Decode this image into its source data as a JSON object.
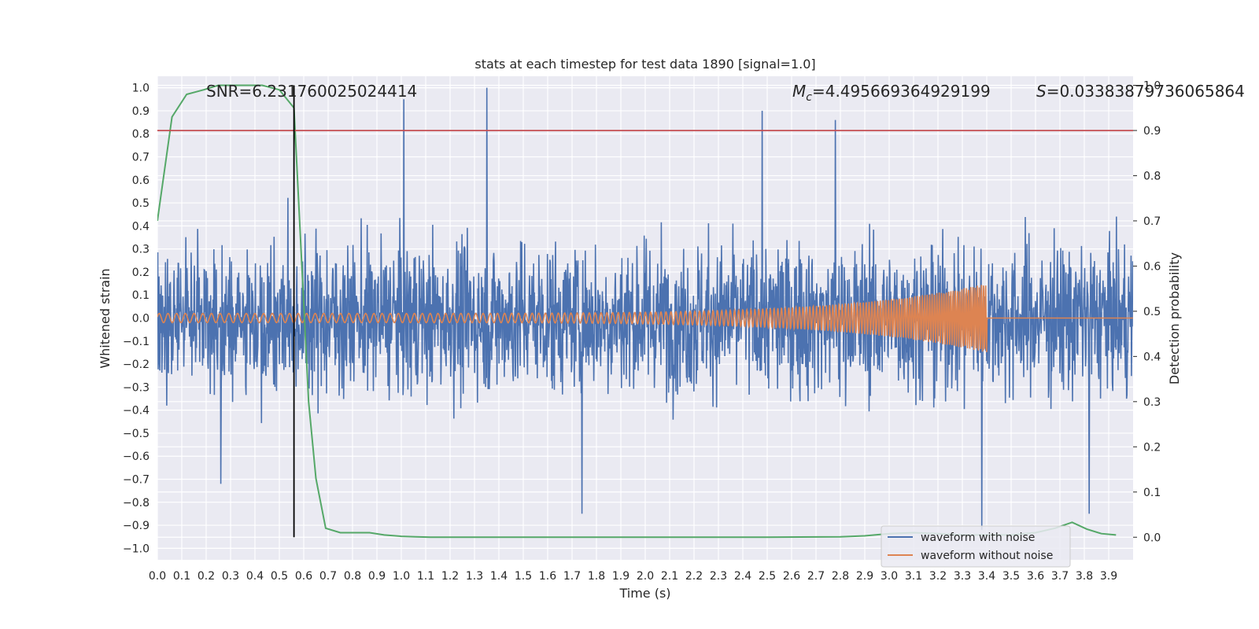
{
  "chart_data": {
    "type": "line",
    "title": "stats at each timestep for test data 1890 [signal=1.0]",
    "xlabel": "Time (s)",
    "ylabel": "Whitened strain",
    "y2label": "Detection probability",
    "xlim": [
      0.0,
      4.0
    ],
    "ylim": [
      -1.05,
      1.05
    ],
    "y2lim": [
      -0.05,
      1.02
    ],
    "x_ticks": [
      "0.0",
      "0.1",
      "0.2",
      "0.3",
      "0.4",
      "0.5",
      "0.6",
      "0.7",
      "0.8",
      "0.9",
      "1.0",
      "1.1",
      "1.2",
      "1.3",
      "1.4",
      "1.5",
      "1.6",
      "1.7",
      "1.8",
      "1.9",
      "2.0",
      "2.1",
      "2.2",
      "2.3",
      "2.4",
      "2.5",
      "2.6",
      "2.7",
      "2.8",
      "2.9",
      "3.0",
      "3.1",
      "3.2",
      "3.3",
      "3.4",
      "3.5",
      "3.6",
      "3.7",
      "3.8",
      "3.9"
    ],
    "y_ticks": [
      "1.0",
      "0.9",
      "0.8",
      "0.7",
      "0.6",
      "0.5",
      "0.4",
      "0.3",
      "0.2",
      "0.1",
      "0.0",
      "−0.1",
      "−0.2",
      "−0.3",
      "−0.4",
      "−0.5",
      "−0.6",
      "−0.7",
      "−0.8",
      "−0.9",
      "−1.0"
    ],
    "y2_ticks": [
      "1.0",
      "0.9",
      "0.8",
      "0.7",
      "0.6",
      "0.5",
      "0.4",
      "0.3",
      "0.2",
      "0.1",
      "0.0"
    ],
    "annotations": {
      "snr": "SNR=6.231760025024414",
      "mc_symbol": "M",
      "mc_sub": "c",
      "mc_value": "=4.495669364929199",
      "s_symbol": "S",
      "s_value": "=0.03383879736065864"
    },
    "threshold": {
      "y2": 0.9,
      "color": "#c44e52"
    },
    "peak_marker": {
      "x": 0.56,
      "color": "#000000"
    },
    "series": [
      {
        "name": "waveform with noise",
        "color": "#4c72b0",
        "envelope": {
          "typical_amplitude": 0.55,
          "max": 1.0,
          "min": -0.92
        },
        "notable_peaks": [
          [
            1.01,
            0.95
          ],
          [
            1.35,
            1.0
          ],
          [
            2.48,
            0.9
          ],
          [
            2.78,
            0.86
          ],
          [
            3.38,
            -0.92
          ],
          [
            1.74,
            -0.85
          ],
          [
            3.82,
            -0.85
          ],
          [
            0.26,
            -0.72
          ]
        ]
      },
      {
        "name": "waveform without noise",
        "color": "#dd8452",
        "chirp": {
          "start": 0.0,
          "end": 3.4,
          "amplitude_start": 0.02,
          "amplitude_end": 0.15
        }
      },
      {
        "name": "",
        "color": "#55a868",
        "axis": "right",
        "x": [
          0.0,
          0.06,
          0.12,
          0.19,
          0.25,
          0.31,
          0.37,
          0.43,
          0.5,
          0.56,
          0.62,
          0.65,
          0.69,
          0.75,
          0.81,
          0.87,
          0.93,
          1.0,
          1.06,
          1.12,
          1.5,
          2.0,
          2.5,
          2.8,
          2.9,
          3.0,
          3.1,
          3.2,
          3.3,
          3.4,
          3.5,
          3.6,
          3.68,
          3.75,
          3.81,
          3.87,
          3.93
        ],
        "values": [
          0.7,
          0.93,
          0.98,
          0.99,
          1.0,
          1.0,
          1.0,
          1.0,
          0.99,
          0.95,
          0.3,
          0.13,
          0.02,
          0.01,
          0.01,
          0.01,
          0.005,
          0.002,
          0.001,
          0.0,
          0.0,
          0.0,
          0.0,
          0.001,
          0.003,
          0.008,
          0.01,
          0.008,
          0.005,
          0.005,
          0.005,
          0.01,
          0.02,
          0.033,
          0.018,
          0.008,
          0.005
        ]
      }
    ],
    "legend": {
      "placement": "lower-right"
    },
    "grid": true,
    "background": "#eaeaf2"
  }
}
